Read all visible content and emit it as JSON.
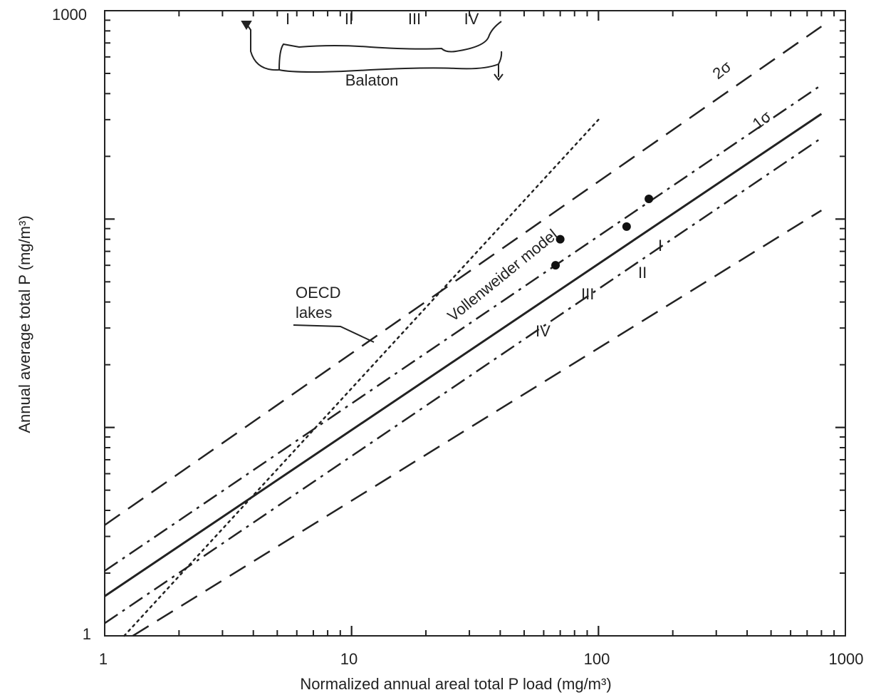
{
  "chart_data": {
    "type": "scatter",
    "title": "",
    "xlabel": "Normalized annual areal total P load (mg/m³)",
    "ylabel": "Annual average total P (mg/m³)",
    "xscale": "log",
    "yscale": "log",
    "xlim": [
      1,
      1000
    ],
    "ylim": [
      1,
      1000
    ],
    "x_ticks": [
      "1",
      "10",
      "100",
      "1000"
    ],
    "y_ticks": [
      "1",
      "1000"
    ],
    "grid": false,
    "lines": [
      {
        "name": "Vollenweider model",
        "style": "solid",
        "x": [
          1,
          800
        ],
        "y": [
          1.55,
          320
        ]
      },
      {
        "name": "1σ",
        "style": "dash-dot",
        "x": [
          1,
          800
        ],
        "y": [
          2.05,
          440
        ]
      },
      {
        "name": "1σ",
        "style": "dash-dot",
        "x": [
          1,
          800
        ],
        "y": [
          1.15,
          245
        ]
      },
      {
        "name": "2σ",
        "style": "dashed",
        "x": [
          1,
          800
        ],
        "y": [
          3.4,
          840
        ]
      },
      {
        "name": "2σ",
        "style": "dashed",
        "x": [
          1.3,
          800
        ],
        "y": [
          1.0,
          110
        ]
      },
      {
        "name": "OECD lakes",
        "style": "dotted",
        "x": [
          1.2,
          100
        ],
        "y": [
          1.0,
          300
        ]
      }
    ],
    "points": [
      {
        "label": "I",
        "x": 160,
        "y": 125
      },
      {
        "label": "II",
        "x": 130,
        "y": 92
      },
      {
        "label": "III",
        "x": 70,
        "y": 80
      },
      {
        "label": "IV",
        "x": 67,
        "y": 60
      }
    ],
    "annotations": {
      "lake_name": "Balaton",
      "lake_sections": [
        "I",
        "II",
        "III",
        "IV"
      ],
      "model_label": "Vollenweider model",
      "oecd_label_1": "OECD",
      "oecd_label_2": "lakes",
      "sigma2": "2σ",
      "sigma1": "1σ"
    }
  }
}
